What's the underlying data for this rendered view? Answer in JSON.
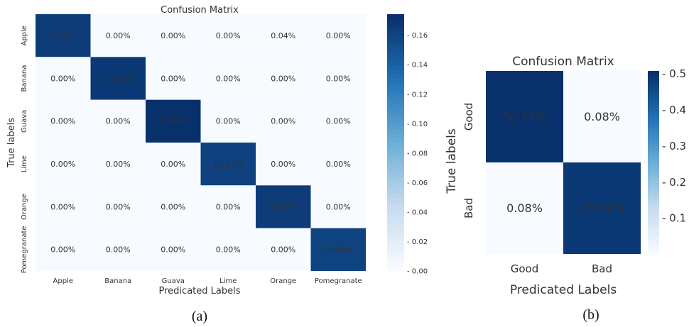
{
  "chart_data": [
    {
      "type": "heatmap",
      "title": "Confusion Matrix",
      "xlabel": "Predicated Labels",
      "ylabel": "True labels",
      "x_categories": [
        "Apple",
        "Banana",
        "Guava",
        "Lime",
        "Orange",
        "Pomegranate"
      ],
      "y_categories": [
        "Apple",
        "Banana",
        "Guava",
        "Lime",
        "Orange",
        "Pomegranate"
      ],
      "values": [
        [
          0.166,
          0.0,
          0.0,
          0.0,
          0.0004,
          0.0
        ],
        [
          0.0,
          0.1685,
          0.0,
          0.0,
          0.0,
          0.0
        ],
        [
          0.0,
          0.0,
          0.1743,
          0.0,
          0.0,
          0.0
        ],
        [
          0.0,
          0.0,
          0.0,
          0.1627,
          0.0,
          0.0
        ],
        [
          0.0,
          0.0,
          0.0,
          0.0,
          0.1664,
          0.0
        ],
        [
          0.0,
          0.0,
          0.0,
          0.0,
          0.0,
          0.1618
        ]
      ],
      "cell_labels": [
        [
          "16.60%",
          "0.00%",
          "0.00%",
          "0.00%",
          "0.04%",
          "0.00%"
        ],
        [
          "0.00%",
          "16.85%",
          "0.00%",
          "0.00%",
          "0.00%",
          "0.00%"
        ],
        [
          "0.00%",
          "0.00%",
          "17.43%",
          "0.00%",
          "0.00%",
          "0.00%"
        ],
        [
          "0.00%",
          "0.00%",
          "0.00%",
          "16.27%",
          "0.00%",
          "0.00%"
        ],
        [
          "0.00%",
          "0.00%",
          "0.00%",
          "0.00%",
          "16.64%",
          "0.00%"
        ],
        [
          "0.00%",
          "0.00%",
          "0.00%",
          "0.00%",
          "0.00%",
          "16.18%"
        ]
      ],
      "colorbar": {
        "range": [
          0,
          0.1743
        ],
        "ticks": [
          0.0,
          0.02,
          0.04,
          0.06,
          0.08,
          0.1,
          0.12,
          0.14,
          0.16
        ],
        "tick_labels": [
          "- 0.00",
          "- 0.02",
          "- 0.04",
          "- 0.06",
          "- 0.08",
          "- 0.10",
          "- 0.12",
          "- 0.14",
          "- 0.16"
        ]
      },
      "colormap": "Blues",
      "caption": "(a)"
    },
    {
      "type": "heatmap",
      "title": "Confusion Matrix",
      "xlabel": "Predicated Labels",
      "ylabel": "True labels",
      "x_categories": [
        "Good",
        "Bad"
      ],
      "y_categories": [
        "Good",
        "Bad"
      ],
      "values": [
        [
          0.5075,
          0.0008
        ],
        [
          0.0008,
          0.4909
        ]
      ],
      "cell_labels": [
        [
          "50.75%",
          "0.08%"
        ],
        [
          "0.08%",
          "49.09%"
        ]
      ],
      "colorbar": {
        "range": [
          0.0008,
          0.5075
        ],
        "ticks": [
          0.1,
          0.2,
          0.3,
          0.4,
          0.5
        ],
        "tick_labels": [
          "- 0.1",
          "- 0.2",
          "- 0.3",
          "- 0.4",
          "- 0.5"
        ]
      },
      "colormap": "Blues",
      "caption": "(b)"
    }
  ],
  "colors": {
    "blues_low": "#f7fbff",
    "blues_mid": "#6baed6",
    "blues_high": "#08306b"
  }
}
